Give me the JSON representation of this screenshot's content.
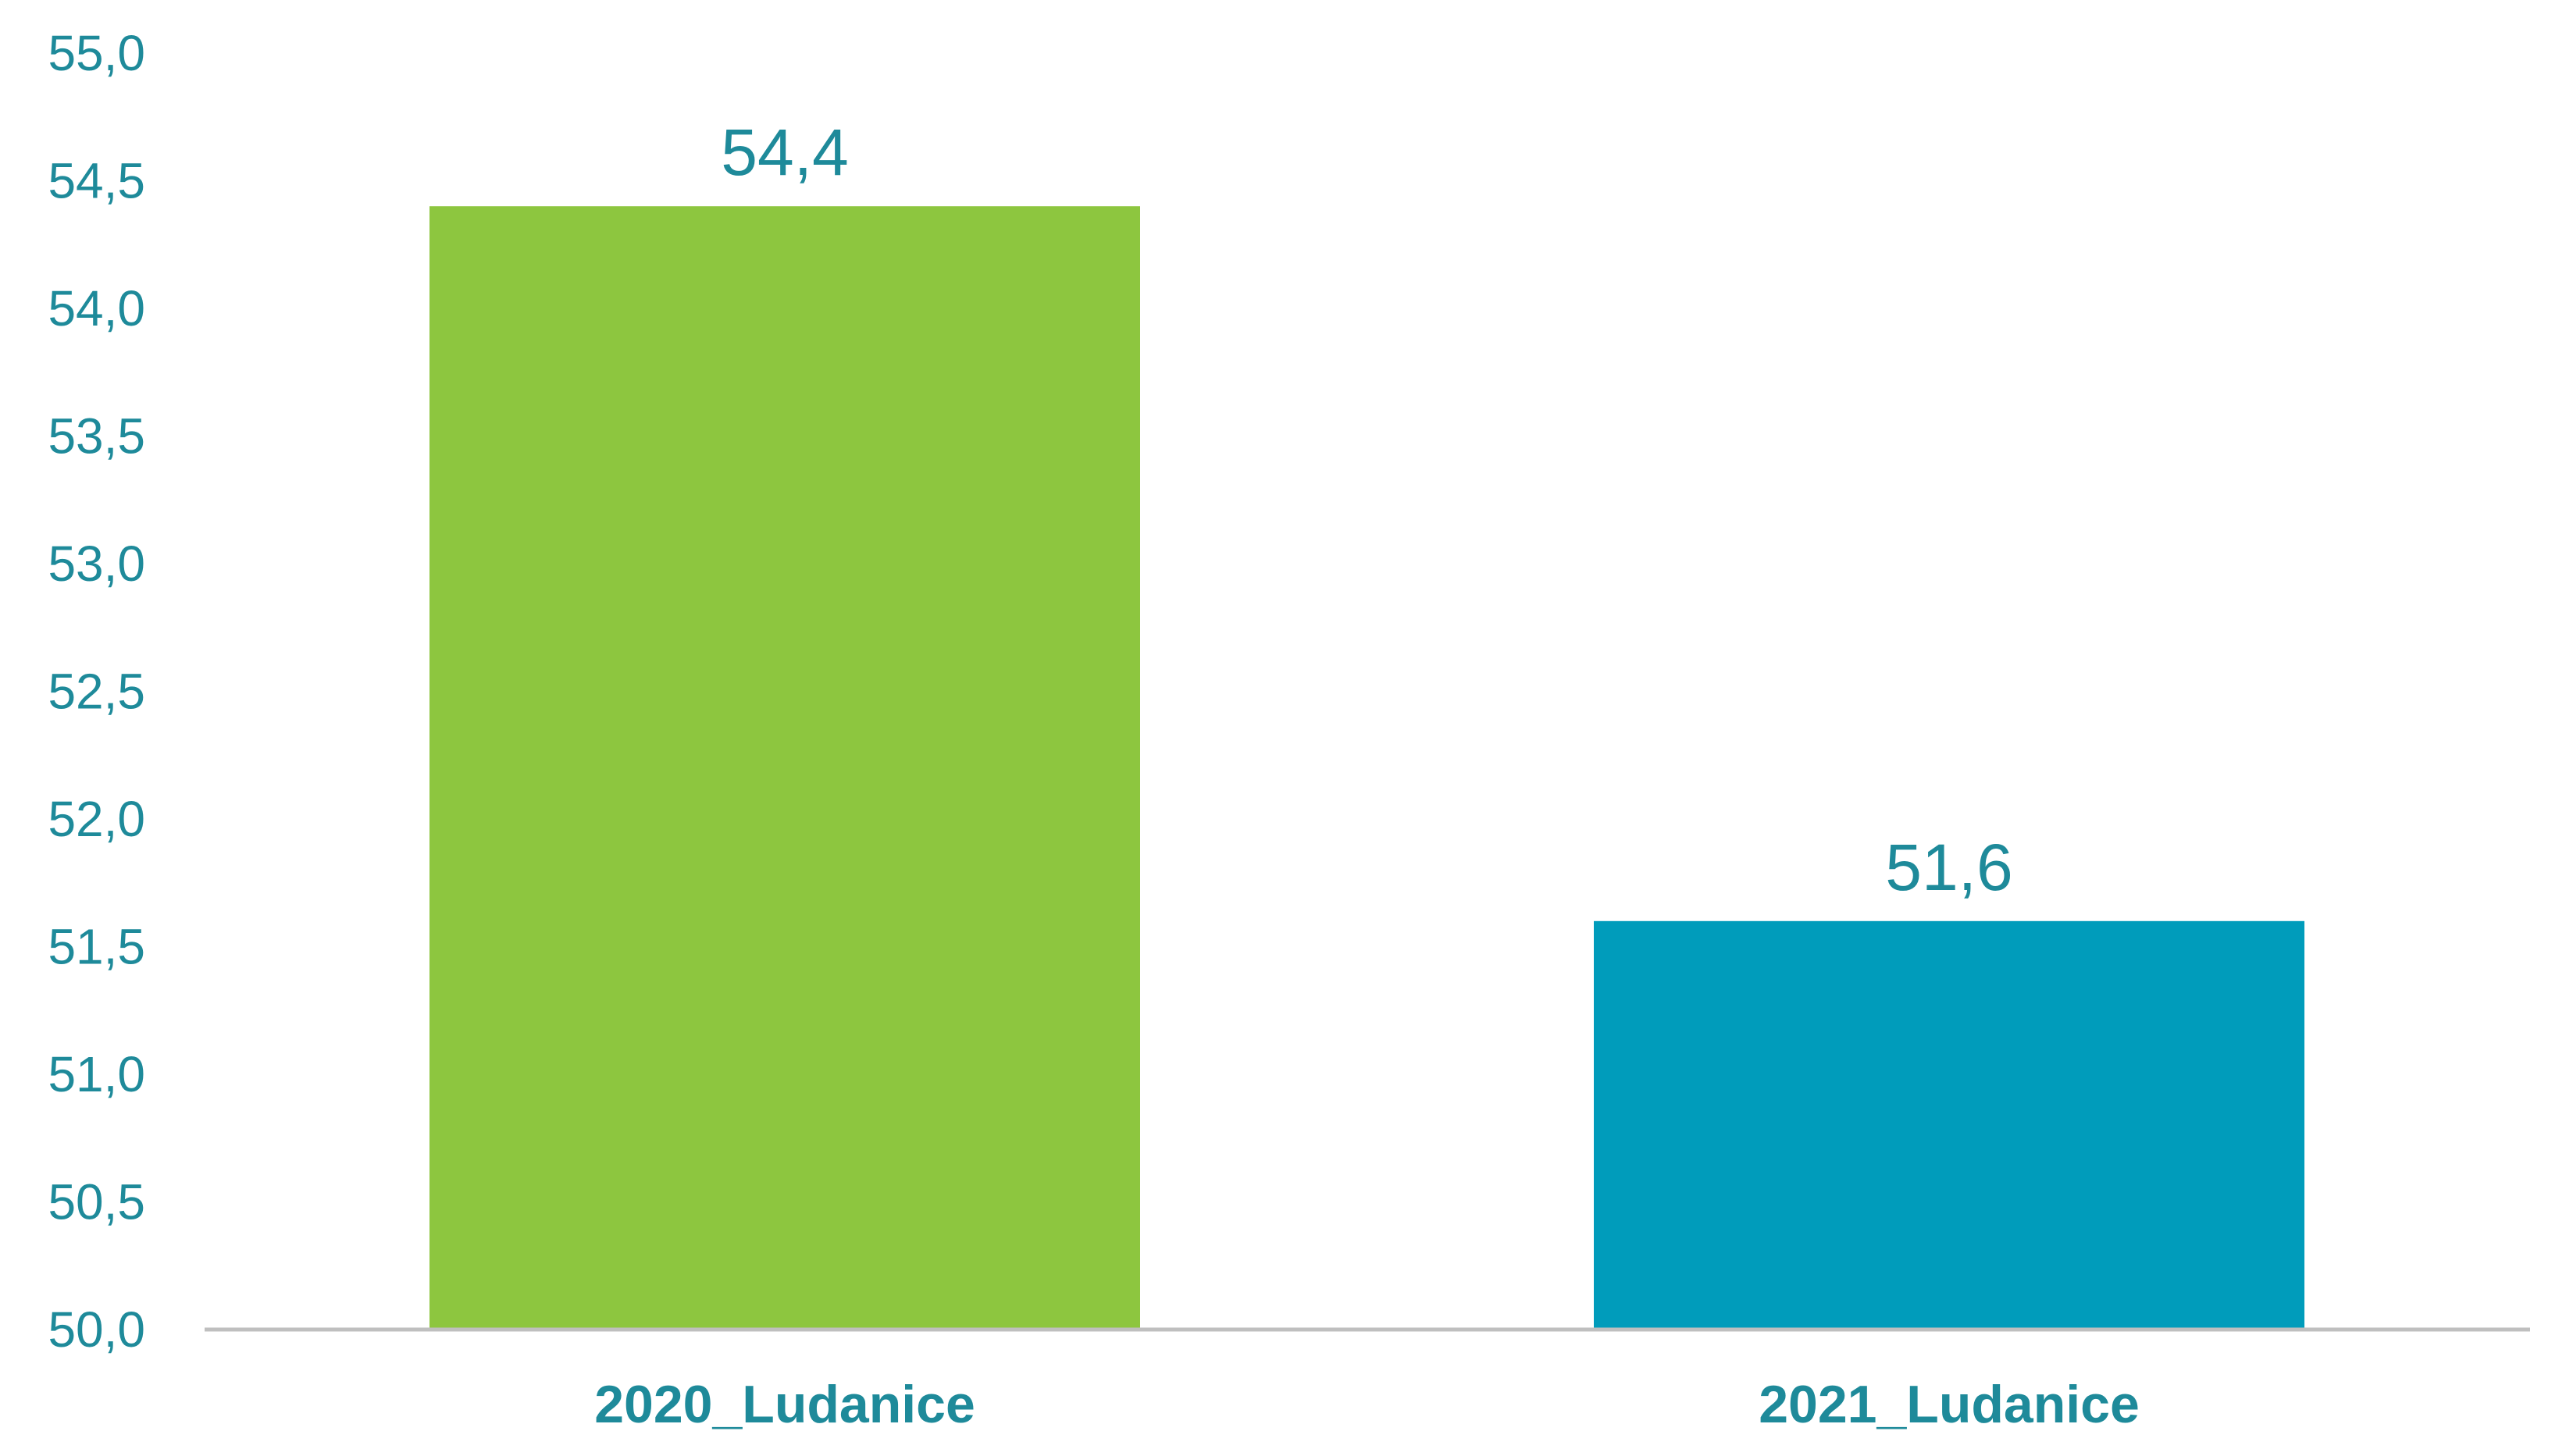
{
  "chart_data": {
    "type": "bar",
    "categories": [
      "2020_Ludanice",
      "2021_Ludanice"
    ],
    "values": [
      54.4,
      51.6
    ],
    "data_labels": [
      "54,4",
      "51,6"
    ],
    "bar_colors": [
      "#8dc63f",
      "#009cbb"
    ],
    "title": "",
    "xlabel": "",
    "ylabel": "",
    "ylim": [
      50.0,
      55.0
    ],
    "y_ticks": [
      "50,0",
      "50,5",
      "51,0",
      "51,5",
      "52,0",
      "52,5",
      "53,0",
      "53,5",
      "54,0",
      "54,5",
      "55,0"
    ],
    "grid": false,
    "legend": "none",
    "text_color": "#1e8a9a",
    "axis_color": "#bfbfbf"
  }
}
